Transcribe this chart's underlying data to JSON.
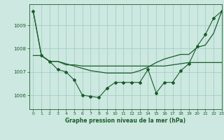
{
  "bg_color": "#cce8e0",
  "grid_color": "#99ccbb",
  "line_color": "#1a5c2a",
  "title": "Graphe pression niveau de la mer (hPa)",
  "xlim": [
    -0.5,
    23
  ],
  "ylim": [
    1005.4,
    1009.9
  ],
  "yticks": [
    1006,
    1007,
    1008,
    1009
  ],
  "xticks": [
    0,
    1,
    2,
    3,
    4,
    5,
    6,
    7,
    8,
    9,
    10,
    11,
    12,
    13,
    14,
    15,
    16,
    17,
    18,
    19,
    20,
    21,
    22,
    23
  ],
  "series1_x": [
    0,
    1,
    2,
    3,
    4,
    5,
    6,
    7,
    8,
    9,
    10,
    11,
    12,
    13,
    14,
    15,
    16,
    17,
    18,
    19,
    20,
    21,
    22,
    23
  ],
  "series1_y": [
    1009.6,
    1007.7,
    1007.45,
    1007.45,
    1007.35,
    1007.25,
    1007.15,
    1007.05,
    1007.0,
    1006.95,
    1006.95,
    1006.95,
    1006.95,
    1007.05,
    1007.2,
    1007.4,
    1007.55,
    1007.65,
    1007.75,
    1007.75,
    1008.05,
    1008.15,
    1008.65,
    1009.6
  ],
  "series2_x": [
    0,
    1,
    2,
    3,
    4,
    5,
    6,
    7,
    8,
    9,
    10,
    11,
    12,
    13,
    14,
    15,
    16,
    17,
    18,
    19,
    20,
    21,
    22,
    23
  ],
  "series2_y": [
    1009.6,
    1007.7,
    1007.45,
    1007.1,
    1007.0,
    1006.65,
    1006.0,
    1005.95,
    1005.9,
    1006.3,
    1006.55,
    1006.55,
    1006.55,
    1006.55,
    1007.1,
    1006.1,
    1006.55,
    1006.55,
    1007.05,
    1007.35,
    1008.1,
    1008.6,
    1009.3,
    1009.6
  ],
  "series3_x": [
    0,
    1,
    2,
    3,
    4,
    5,
    6,
    7,
    8,
    9,
    10,
    11,
    12,
    13,
    14,
    15,
    16,
    17,
    18,
    19,
    20,
    21,
    22,
    23
  ],
  "series3_y": [
    1007.7,
    1007.7,
    1007.45,
    1007.45,
    1007.3,
    1007.3,
    1007.25,
    1007.25,
    1007.25,
    1007.25,
    1007.25,
    1007.25,
    1007.25,
    1007.25,
    1007.25,
    1007.25,
    1007.25,
    1007.3,
    1007.35,
    1007.4,
    1007.4,
    1007.4,
    1007.4,
    1007.4
  ]
}
